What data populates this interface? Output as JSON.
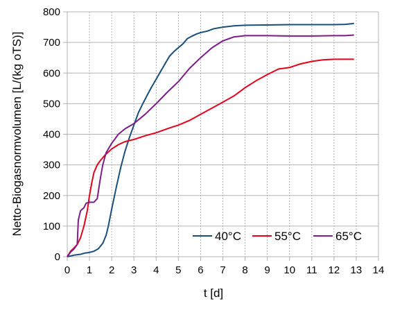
{
  "chart_data": {
    "type": "line",
    "xlabel": "t [d]",
    "ylabel": "Netto-Biogasnormvolumen [L/(kg oTS)]",
    "xlim": [
      0,
      14
    ],
    "ylim": [
      0,
      800
    ],
    "xticks": [
      0,
      1,
      2,
      3,
      4,
      5,
      6,
      7,
      8,
      9,
      10,
      11,
      12,
      13,
      14
    ],
    "yticks": [
      0,
      100,
      200,
      300,
      400,
      500,
      600,
      700,
      800
    ],
    "grid": {
      "x": "dashed",
      "y": "solid"
    },
    "legend_position": "bottom-right-inside",
    "series": [
      {
        "name": "40°C",
        "color": "#1a4e7a",
        "points": [
          [
            0,
            0
          ],
          [
            0.3,
            5
          ],
          [
            0.6,
            8
          ],
          [
            0.8,
            12
          ],
          [
            1.0,
            14
          ],
          [
            1.2,
            18
          ],
          [
            1.4,
            26
          ],
          [
            1.6,
            44
          ],
          [
            1.75,
            70
          ],
          [
            1.85,
            100
          ],
          [
            2.0,
            155
          ],
          [
            2.2,
            225
          ],
          [
            2.4,
            290
          ],
          [
            2.6,
            345
          ],
          [
            2.8,
            390
          ],
          [
            3.0,
            430
          ],
          [
            3.2,
            470
          ],
          [
            3.4,
            500
          ],
          [
            3.6,
            528
          ],
          [
            3.8,
            555
          ],
          [
            4.0,
            580
          ],
          [
            4.2,
            605
          ],
          [
            4.4,
            630
          ],
          [
            4.6,
            655
          ],
          [
            4.8,
            670
          ],
          [
            5.0,
            683
          ],
          [
            5.2,
            695
          ],
          [
            5.4,
            712
          ],
          [
            5.6,
            720
          ],
          [
            5.8,
            727
          ],
          [
            6.0,
            732
          ],
          [
            6.3,
            737
          ],
          [
            6.6,
            745
          ],
          [
            7.0,
            750
          ],
          [
            7.5,
            754
          ],
          [
            8.0,
            756
          ],
          [
            9.0,
            757
          ],
          [
            10.0,
            758
          ],
          [
            11.0,
            758
          ],
          [
            12.0,
            758
          ],
          [
            12.5,
            759
          ],
          [
            12.9,
            762
          ]
        ]
      },
      {
        "name": "55°C",
        "color": "#e3001b",
        "points": [
          [
            0,
            0
          ],
          [
            0.15,
            18
          ],
          [
            0.3,
            28
          ],
          [
            0.45,
            40
          ],
          [
            0.6,
            62
          ],
          [
            0.75,
            100
          ],
          [
            0.9,
            150
          ],
          [
            1.0,
            200
          ],
          [
            1.1,
            240
          ],
          [
            1.2,
            275
          ],
          [
            1.35,
            300
          ],
          [
            1.5,
            315
          ],
          [
            1.7,
            332
          ],
          [
            2.0,
            352
          ],
          [
            2.3,
            366
          ],
          [
            2.6,
            376
          ],
          [
            3.0,
            383
          ],
          [
            3.5,
            395
          ],
          [
            4.0,
            405
          ],
          [
            4.5,
            418
          ],
          [
            5.0,
            430
          ],
          [
            5.5,
            445
          ],
          [
            6.0,
            465
          ],
          [
            6.5,
            485
          ],
          [
            7.0,
            505
          ],
          [
            7.5,
            525
          ],
          [
            8.0,
            552
          ],
          [
            8.5,
            575
          ],
          [
            9.0,
            595
          ],
          [
            9.5,
            613
          ],
          [
            10.0,
            618
          ],
          [
            10.5,
            630
          ],
          [
            11.0,
            638
          ],
          [
            11.5,
            643
          ],
          [
            12.0,
            645
          ],
          [
            12.5,
            645
          ],
          [
            12.9,
            645
          ]
        ]
      },
      {
        "name": "65°C",
        "color": "#7b1c87",
        "points": [
          [
            0,
            0
          ],
          [
            0.15,
            15
          ],
          [
            0.3,
            25
          ],
          [
            0.45,
            40
          ],
          [
            0.5,
            120
          ],
          [
            0.6,
            150
          ],
          [
            0.75,
            160
          ],
          [
            0.85,
            175
          ],
          [
            1.0,
            178
          ],
          [
            1.2,
            178
          ],
          [
            1.35,
            190
          ],
          [
            1.5,
            260
          ],
          [
            1.6,
            300
          ],
          [
            1.75,
            340
          ],
          [
            2.0,
            370
          ],
          [
            2.3,
            400
          ],
          [
            2.6,
            418
          ],
          [
            3.0,
            435
          ],
          [
            3.5,
            465
          ],
          [
            4.0,
            500
          ],
          [
            4.5,
            537
          ],
          [
            5.0,
            572
          ],
          [
            5.5,
            615
          ],
          [
            6.0,
            650
          ],
          [
            6.5,
            682
          ],
          [
            7.0,
            705
          ],
          [
            7.5,
            718
          ],
          [
            8.0,
            722
          ],
          [
            9.0,
            722
          ],
          [
            10.0,
            721
          ],
          [
            11.0,
            721
          ],
          [
            12.0,
            722
          ],
          [
            12.5,
            722
          ],
          [
            12.9,
            724
          ]
        ]
      }
    ]
  }
}
